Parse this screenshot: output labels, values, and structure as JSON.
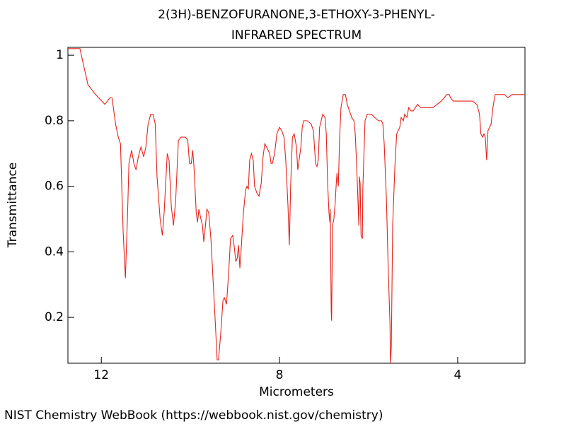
{
  "chart_data": {
    "type": "line",
    "title": "2(3H)-BENZOFURANONE,3-ETHOXY-3-PHENYL-",
    "subtitle": "INFRARED SPECTRUM",
    "xlabel": "Micrometers",
    "ylabel": "Transmittance",
    "xlim": [
      12.75,
      2.49
    ],
    "ylim": [
      0.06,
      1.024
    ],
    "xticks": [
      12,
      8,
      4
    ],
    "yticks": [
      0.2,
      0.4,
      0.6,
      0.8,
      1
    ],
    "x": [
      12.75,
      12.48,
      12.4,
      12.3,
      12.13,
      11.92,
      11.81,
      11.76,
      11.68,
      11.62,
      11.57,
      11.51,
      11.46,
      11.41,
      11.38,
      11.32,
      11.27,
      11.22,
      11.17,
      11.11,
      11.05,
      11.0,
      10.95,
      10.89,
      10.84,
      10.79,
      10.75,
      10.68,
      10.63,
      10.59,
      10.52,
      10.48,
      10.43,
      10.38,
      10.33,
      10.27,
      10.21,
      10.16,
      10.11,
      10.06,
      10.02,
      9.98,
      9.95,
      9.92,
      9.87,
      9.84,
      9.81,
      9.78,
      9.73,
      9.7,
      9.67,
      9.63,
      9.59,
      9.54,
      9.49,
      9.44,
      9.4,
      9.37,
      9.32,
      9.27,
      9.24,
      9.19,
      9.14,
      9.1,
      9.05,
      9.02,
      8.98,
      8.95,
      8.92,
      8.89,
      8.86,
      8.81,
      8.76,
      8.73,
      8.7,
      8.67,
      8.63,
      8.59,
      8.56,
      8.51,
      8.46,
      8.41,
      8.37,
      8.33,
      8.29,
      8.22,
      8.19,
      8.16,
      8.11,
      8.06,
      8.0,
      7.95,
      7.9,
      7.86,
      7.81,
      7.78,
      7.75,
      7.71,
      7.67,
      7.62,
      7.59,
      7.56,
      7.52,
      7.49,
      7.46,
      7.38,
      7.29,
      7.24,
      7.19,
      7.16,
      7.13,
      7.1,
      7.03,
      6.98,
      6.95,
      6.92,
      6.89,
      6.87,
      6.86,
      6.84,
      6.83,
      6.81,
      6.78,
      6.75,
      6.73,
      6.71,
      6.68,
      6.65,
      6.62,
      6.57,
      6.52,
      6.48,
      6.43,
      6.38,
      6.33,
      6.3,
      6.27,
      6.24,
      6.22,
      6.21,
      6.19,
      6.17,
      6.14,
      6.13,
      6.08,
      6.03,
      5.94,
      5.86,
      5.78,
      5.71,
      5.68,
      5.65,
      5.6,
      5.56,
      5.52,
      5.51,
      5.49,
      5.46,
      5.41,
      5.37,
      5.3,
      5.27,
      5.22,
      5.19,
      5.14,
      5.1,
      5.05,
      5.0,
      4.9,
      4.83,
      4.75,
      4.65,
      4.56,
      4.46,
      4.37,
      4.3,
      4.25,
      4.19,
      4.16,
      4.1,
      3.95,
      3.79,
      3.67,
      3.57,
      3.51,
      3.48,
      3.44,
      3.41,
      3.38,
      3.35,
      3.32,
      3.25,
      3.21,
      3.16,
      3.06,
      2.95,
      2.87,
      2.78,
      2.68,
      2.59,
      2.49
    ],
    "series": [
      {
        "color": "#e8221b",
        "values": [
          1.02,
          1.02,
          0.97,
          0.91,
          0.88,
          0.85,
          0.87,
          0.87,
          0.79,
          0.75,
          0.73,
          0.46,
          0.32,
          0.52,
          0.67,
          0.71,
          0.67,
          0.65,
          0.69,
          0.72,
          0.69,
          0.72,
          0.79,
          0.82,
          0.82,
          0.79,
          0.63,
          0.5,
          0.45,
          0.52,
          0.7,
          0.68,
          0.54,
          0.48,
          0.56,
          0.74,
          0.75,
          0.75,
          0.75,
          0.74,
          0.67,
          0.67,
          0.71,
          0.66,
          0.52,
          0.49,
          0.53,
          0.51,
          0.48,
          0.43,
          0.47,
          0.53,
          0.52,
          0.44,
          0.31,
          0.18,
          0.07,
          0.07,
          0.15,
          0.25,
          0.26,
          0.24,
          0.34,
          0.44,
          0.45,
          0.42,
          0.37,
          0.38,
          0.42,
          0.35,
          0.41,
          0.52,
          0.59,
          0.6,
          0.59,
          0.68,
          0.7,
          0.68,
          0.6,
          0.58,
          0.57,
          0.61,
          0.69,
          0.73,
          0.72,
          0.7,
          0.67,
          0.67,
          0.7,
          0.76,
          0.78,
          0.77,
          0.75,
          0.68,
          0.54,
          0.42,
          0.6,
          0.75,
          0.76,
          0.72,
          0.65,
          0.68,
          0.72,
          0.78,
          0.8,
          0.8,
          0.79,
          0.77,
          0.67,
          0.66,
          0.68,
          0.78,
          0.82,
          0.81,
          0.76,
          0.61,
          0.52,
          0.49,
          0.53,
          0.22,
          0.19,
          0.48,
          0.5,
          0.55,
          0.6,
          0.64,
          0.6,
          0.75,
          0.84,
          0.88,
          0.88,
          0.85,
          0.83,
          0.81,
          0.8,
          0.76,
          0.67,
          0.56,
          0.48,
          0.63,
          0.61,
          0.45,
          0.44,
          0.59,
          0.8,
          0.82,
          0.82,
          0.81,
          0.8,
          0.8,
          0.79,
          0.73,
          0.56,
          0.35,
          0.18,
          0.06,
          0.11,
          0.48,
          0.66,
          0.76,
          0.78,
          0.81,
          0.8,
          0.82,
          0.81,
          0.84,
          0.83,
          0.83,
          0.85,
          0.84,
          0.84,
          0.84,
          0.84,
          0.85,
          0.86,
          0.87,
          0.88,
          0.88,
          0.87,
          0.86,
          0.86,
          0.86,
          0.86,
          0.85,
          0.82,
          0.76,
          0.75,
          0.76,
          0.75,
          0.68,
          0.77,
          0.79,
          0.84,
          0.88,
          0.88,
          0.88,
          0.87,
          0.88,
          0.88,
          0.88,
          0.88
        ]
      }
    ]
  },
  "footer": "NIST Chemistry WebBook (https://webbook.nist.gov/chemistry)"
}
